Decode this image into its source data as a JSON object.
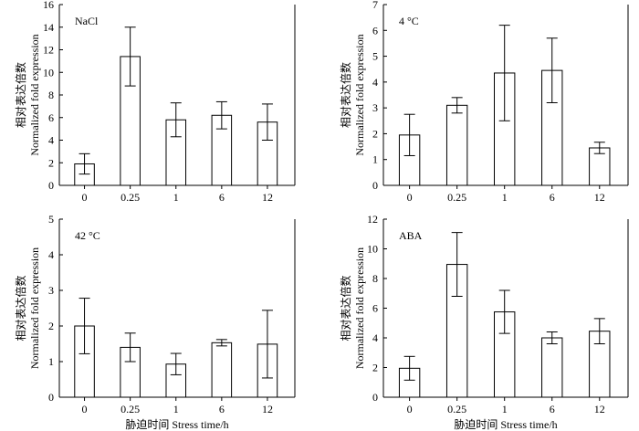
{
  "chart_data": [
    {
      "type": "bar",
      "panel_label": "NaCl",
      "categories": [
        "0",
        "0.25",
        "1",
        "6",
        "12"
      ],
      "values": [
        1.9,
        11.4,
        5.8,
        6.2,
        5.6
      ],
      "errors": [
        0.9,
        2.6,
        1.5,
        1.2,
        1.6
      ],
      "ylim": [
        0,
        16
      ],
      "yticks": [
        "0",
        "2",
        "4",
        "6",
        "8",
        "10",
        "12",
        "14",
        "16"
      ],
      "ylabel_cn": "相对表达倍数",
      "ylabel_en": "Normalized fold expression",
      "xlabel": ""
    },
    {
      "type": "bar",
      "panel_label": "4 °C",
      "categories": [
        "0",
        "0.25",
        "1",
        "6",
        "12"
      ],
      "values": [
        1.95,
        3.1,
        4.35,
        4.45,
        1.45
      ],
      "errors": [
        0.8,
        0.3,
        1.85,
        1.25,
        0.22
      ],
      "ylim": [
        0,
        7
      ],
      "yticks": [
        "0",
        "1",
        "2",
        "3",
        "4",
        "5",
        "6",
        "7"
      ],
      "ylabel_cn": "相对表达倍数",
      "ylabel_en": "Normalized fold expression",
      "xlabel": ""
    },
    {
      "type": "bar",
      "panel_label": "42 °C",
      "categories": [
        "0",
        "0.25",
        "1",
        "6",
        "12"
      ],
      "values": [
        2.0,
        1.4,
        0.93,
        1.53,
        1.49
      ],
      "errors": [
        0.78,
        0.4,
        0.3,
        0.09,
        0.95
      ],
      "ylim": [
        0,
        5
      ],
      "yticks": [
        "0",
        "1",
        "2",
        "3",
        "4",
        "5"
      ],
      "ylabel_cn": "相对表达倍数",
      "ylabel_en": "Normalized fold expression",
      "xlabel": "胁迫时间  Stress time/h"
    },
    {
      "type": "bar",
      "panel_label": "ABA",
      "categories": [
        "0",
        "0.25",
        "1",
        "6",
        "12"
      ],
      "values": [
        1.95,
        8.95,
        5.75,
        4.0,
        4.45
      ],
      "errors": [
        0.8,
        2.15,
        1.45,
        0.4,
        0.85
      ],
      "ylim": [
        0,
        12
      ],
      "yticks": [
        "0",
        "2",
        "4",
        "6",
        "8",
        "10",
        "12"
      ],
      "ylabel_cn": "相对表达倍数",
      "ylabel_en": "Normalized fold expression",
      "xlabel": "胁迫时间  Stress time/h"
    }
  ]
}
